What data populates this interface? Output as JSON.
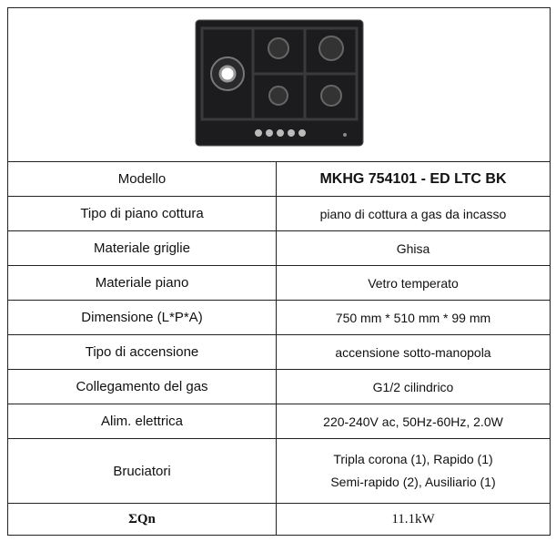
{
  "table": {
    "rows": [
      [
        "Modello",
        "MKHG 754101 - ED LTC BK"
      ],
      [
        "Tipo di piano cottura",
        "piano di cottura a gas da incasso"
      ],
      [
        "Materiale griglie",
        "Ghisa"
      ],
      [
        "Materiale piano",
        "Vetro temperato"
      ],
      [
        "Dimensione (L*P*A)",
        "750 mm * 510 mm * 99 mm"
      ],
      [
        "Tipo di accensione",
        "accensione sotto-manopola"
      ],
      [
        "Collegamento del gas",
        "G1/2 cilindrico"
      ],
      [
        "Alim. elettrica",
        "220-240V ac, 50Hz-60Hz, 2.0W"
      ],
      [
        "Bruciatori",
        "Tripla corona (1), Rapido (1)",
        "Semi-rapido (2), Ausiliario (1)"
      ],
      [
        "ΣQn",
        "11.1kW"
      ]
    ]
  }
}
